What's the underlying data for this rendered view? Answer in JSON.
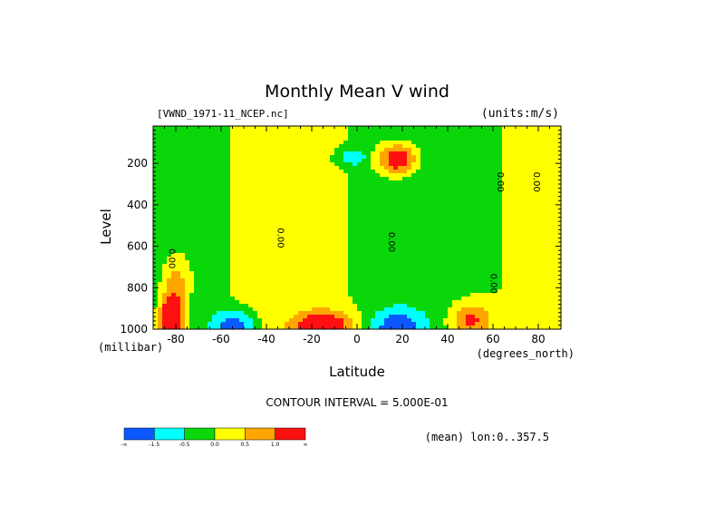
{
  "chart_data": {
    "type": "heatmap",
    "title": "Monthly Mean V wind",
    "dataset_label": "[VWND_1971-11_NCEP.nc]",
    "units_label": "(units:m/s)",
    "xlabel": "Latitude",
    "x_units_label": "(degrees_north)",
    "ylabel": "Level",
    "y_units_label": "(millibar)",
    "contour_interval_label": "CONTOUR INTERVAL = 5.000E-01",
    "mean_label": "(mean) lon:0..357.5",
    "xlim": [
      -90,
      90
    ],
    "ylim": [
      1000,
      20
    ],
    "y_inverted": true,
    "x_ticks": [
      {
        "value": -80,
        "label": "-80"
      },
      {
        "value": -60,
        "label": "-60"
      },
      {
        "value": -40,
        "label": "-40"
      },
      {
        "value": -20,
        "label": "-20"
      },
      {
        "value": 0,
        "label": "0"
      },
      {
        "value": 20,
        "label": "20"
      },
      {
        "value": 40,
        "label": "40"
      },
      {
        "value": 60,
        "label": "60"
      },
      {
        "value": 80,
        "label": "80"
      }
    ],
    "y_ticks": [
      {
        "value": 200,
        "label": "200"
      },
      {
        "value": 400,
        "label": "400"
      },
      {
        "value": 600,
        "label": "600"
      },
      {
        "value": 800,
        "label": "800"
      },
      {
        "value": 1000,
        "label": "1000"
      }
    ],
    "contour_labels": [
      {
        "x": -83,
        "y": 660,
        "text": "0.00"
      },
      {
        "x": -35,
        "y": 560,
        "text": "0.00"
      },
      {
        "x": 14,
        "y": 580,
        "text": "0.00"
      },
      {
        "x": 62,
        "y": 290,
        "text": "0.00"
      },
      {
        "x": 78,
        "y": 290,
        "text": "0.00"
      },
      {
        "x": 59,
        "y": 780,
        "text": "0.00"
      }
    ],
    "colorbar": {
      "colors": [
        "#0c58ff",
        "#00ffff",
        "#0ad70a",
        "#ffff00",
        "#ffa500",
        "#ff1010"
      ],
      "labels": [
        "-∞",
        "-1.5",
        "-0.5",
        "0.0",
        "0.5",
        "1.0",
        "∞"
      ]
    },
    "levels": [
      -1.5,
      -1.0,
      -0.5,
      0.0,
      0.5,
      1.0,
      1.5
    ],
    "features": [
      {
        "lat": -82,
        "p": 950,
        "v": 2.5,
        "sx": 5,
        "sy": 110
      },
      {
        "lat": -80,
        "p": 760,
        "v": 0.9,
        "sx": 6,
        "sy": 120
      },
      {
        "lat": -55,
        "p": 990,
        "v": -2.4,
        "sx": 8,
        "sy": 65
      },
      {
        "lat": -15,
        "p": 990,
        "v": 1.9,
        "sx": 12,
        "sy": 70
      },
      {
        "lat": 18,
        "p": 990,
        "v": -2.5,
        "sx": 9,
        "sy": 70
      },
      {
        "lat": 50,
        "p": 960,
        "v": 1.3,
        "sx": 9,
        "sy": 90
      },
      {
        "lat": 18,
        "p": 180,
        "v": 1.8,
        "sx": 8,
        "sy": 70
      },
      {
        "lat": -2,
        "p": 170,
        "v": -1.0,
        "sx": 6,
        "sy": 40
      }
    ]
  }
}
